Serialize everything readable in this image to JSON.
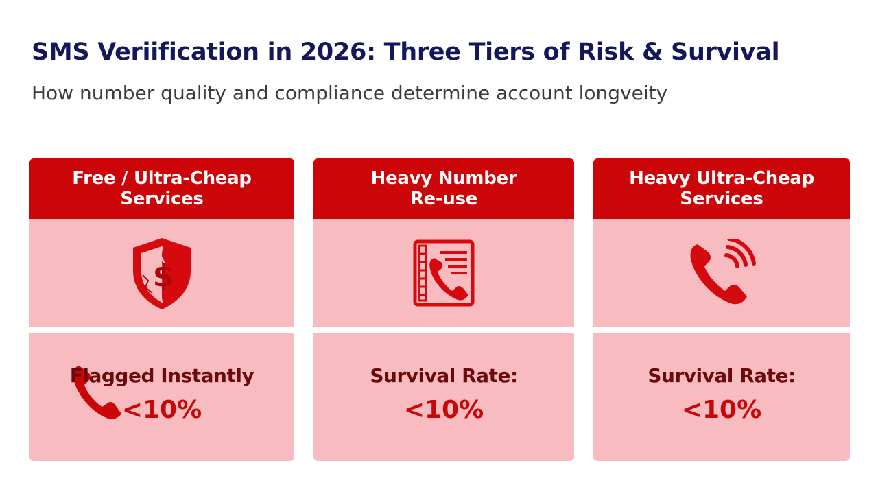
{
  "header": {
    "title": "SMS Veriification in 2026: Three Tiers of Risk & Survival",
    "subtitle": "How number quality and compliance determine account longveity"
  },
  "colors": {
    "header_red": "#cc0509",
    "panel_pink": "#f8bcc0",
    "title_navy": "#14175a",
    "result_dark": "#6b0a0a",
    "result_red": "#c8070b"
  },
  "tiers": [
    {
      "title": "Free / Ultra-Cheap\nServices",
      "icon": "cracked-shield-dollar-icon",
      "result_label": "Flagged Instantly",
      "result_value": "<10%"
    },
    {
      "title": "Heavy Number\nRe-use",
      "icon": "phone-directory-icon",
      "result_label": "Survival Rate:",
      "result_value": "<10%"
    },
    {
      "title": "Heavy Ultra-Cheap\nServices",
      "icon": "phone-ringing-icon",
      "result_label": "Survival Rate:",
      "result_value": "<10%"
    }
  ]
}
